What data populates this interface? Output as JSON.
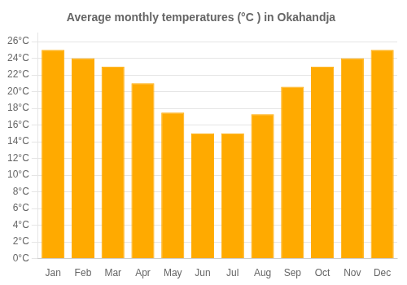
{
  "chart_data": {
    "type": "bar",
    "title": "Average monthly temperatures (°C ) in Okahandja",
    "categories": [
      "Jan",
      "Feb",
      "Mar",
      "Apr",
      "May",
      "Jun",
      "Jul",
      "Aug",
      "Sep",
      "Oct",
      "Nov",
      "Dec"
    ],
    "values": [
      25.0,
      24.0,
      23.0,
      21.0,
      17.5,
      15.0,
      15.0,
      17.3,
      20.6,
      23.0,
      24.0,
      25.0
    ],
    "color": "#FFAA00",
    "ylim": [
      0,
      27
    ],
    "yticks": [
      {
        "value": 0,
        "label": "0°C"
      },
      {
        "value": 2,
        "label": "2°C"
      },
      {
        "value": 4,
        "label": "4°C"
      },
      {
        "value": 6,
        "label": "6°C"
      },
      {
        "value": 8,
        "label": "8°C"
      },
      {
        "value": 10,
        "label": "10°C"
      },
      {
        "value": 12,
        "label": "12°C"
      },
      {
        "value": 14,
        "label": "14°C"
      },
      {
        "value": 16,
        "label": "16°C"
      },
      {
        "value": 18,
        "label": "18°C"
      },
      {
        "value": 20,
        "label": "20°C"
      },
      {
        "value": 22,
        "label": "22°C"
      },
      {
        "value": 24,
        "label": "24°C"
      },
      {
        "value": 26,
        "label": "26°C"
      }
    ],
    "grid": true
  }
}
